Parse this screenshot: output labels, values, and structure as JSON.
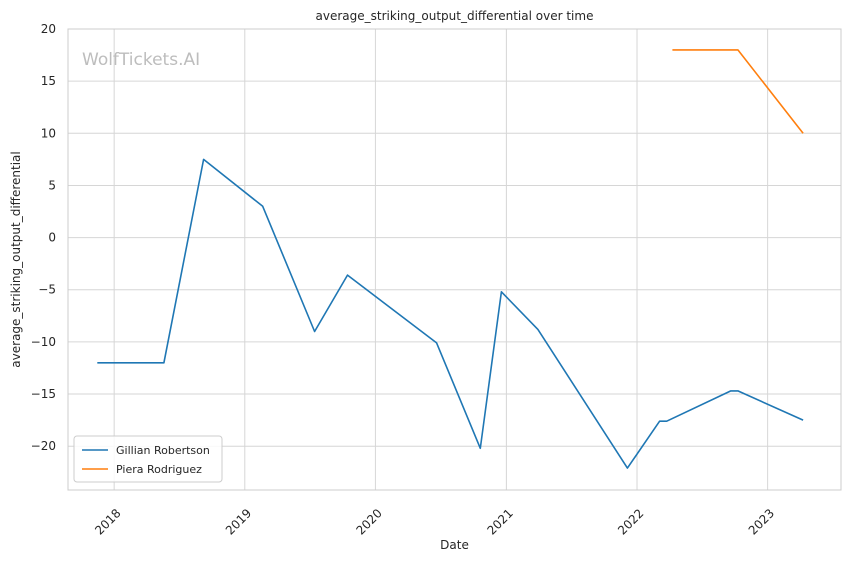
{
  "chart_data": {
    "type": "line",
    "title": "average_striking_output_differential over time",
    "xlabel": "Date",
    "ylabel": "average_striking_output_differential",
    "watermark": "WolfTickets.AI",
    "x_ticks": [
      "2018",
      "2019",
      "2020",
      "2021",
      "2022",
      "2023"
    ],
    "y_ticks": [
      20,
      15,
      10,
      5,
      0,
      -5,
      -10,
      -15,
      -20
    ],
    "xlim": [
      "2017-08-25",
      "2023-07-25"
    ],
    "ylim": [
      -24.2,
      20
    ],
    "grid": true,
    "legend_position": "lower-left",
    "series": [
      {
        "name": "Gillian Robertson",
        "color": "#1f77b4",
        "points": [
          {
            "x": "2017-11-15",
            "y": -12.0
          },
          {
            "x": "2018-05-20",
            "y": -12.0
          },
          {
            "x": "2018-09-08",
            "y": 7.5
          },
          {
            "x": "2019-02-20",
            "y": 3.0
          },
          {
            "x": "2019-07-15",
            "y": -9.0
          },
          {
            "x": "2019-10-15",
            "y": -3.6
          },
          {
            "x": "2020-06-20",
            "y": -10.1
          },
          {
            "x": "2020-10-20",
            "y": -20.2
          },
          {
            "x": "2020-12-18",
            "y": -5.2
          },
          {
            "x": "2021-03-30",
            "y": -8.8
          },
          {
            "x": "2021-12-05",
            "y": -22.1
          },
          {
            "x": "2022-03-05",
            "y": -17.6
          },
          {
            "x": "2022-03-25",
            "y": -17.6
          },
          {
            "x": "2022-09-20",
            "y": -14.7
          },
          {
            "x": "2022-10-10",
            "y": -14.7
          },
          {
            "x": "2023-04-10",
            "y": -17.5
          }
        ]
      },
      {
        "name": "Piera Rodriguez",
        "color": "#ff7f0e",
        "points": [
          {
            "x": "2022-04-10",
            "y": 18.0
          },
          {
            "x": "2022-10-10",
            "y": 18.0
          },
          {
            "x": "2023-04-10",
            "y": 10.0
          }
        ]
      }
    ]
  }
}
